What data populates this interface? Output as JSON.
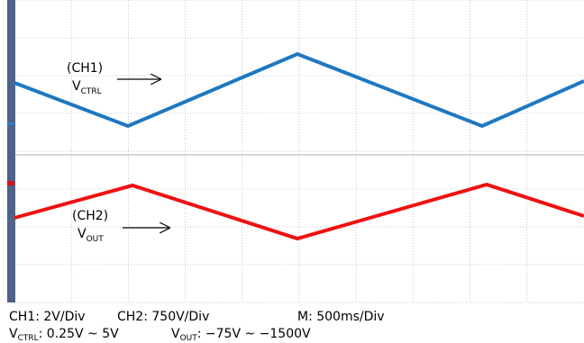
{
  "screen": {
    "ch1_label": {
      "name": "(CH1)",
      "symbol": "V",
      "sub": "CTRL"
    },
    "ch2_label": {
      "name": "(CH2)",
      "symbol": "V",
      "sub": "OUT"
    }
  },
  "footer": {
    "line1": [
      "CH1: 2V/Div",
      "CH2: 750V/Div",
      "M: 500ms/Div"
    ],
    "line2": [
      {
        "symbol": "V",
        "sub": "CTRL",
        "rest": ": 0.25V ~ 5V"
      },
      {
        "symbol": "V",
        "sub": "OUT",
        "rest": ": −75V ~ −1500V"
      }
    ]
  }
}
